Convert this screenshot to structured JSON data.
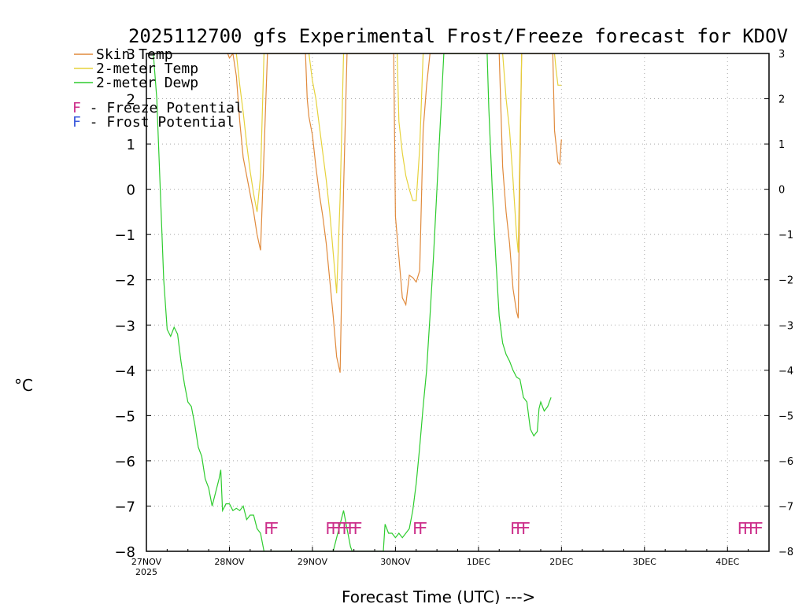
{
  "chart_data": {
    "type": "line",
    "title": "2025112700 gfs Experimental Frost/Freeze forecast for KDOV",
    "ylabel": "°C",
    "xlabel": "Forecast Time (UTC) --->",
    "ylim": [
      -8,
      3
    ],
    "yticks": [
      3,
      2,
      1,
      0,
      -1,
      -2,
      -3,
      -4,
      -5,
      -6,
      -7,
      -8
    ],
    "ytick_labels": [
      "3",
      "2",
      "1",
      "0",
      "−1",
      "−2",
      "−3",
      "−4",
      "−5",
      "−6",
      "−7",
      "−8"
    ],
    "x_unit": "hours since 27NOV2025 00 UTC",
    "xlim": [
      0,
      180
    ],
    "xticks": [
      {
        "hour": 0,
        "label": "27NOV",
        "sub": "2025"
      },
      {
        "hour": 24,
        "label": "28NOV",
        "sub": ""
      },
      {
        "hour": 48,
        "label": "29NOV",
        "sub": ""
      },
      {
        "hour": 72,
        "label": "30NOV",
        "sub": ""
      },
      {
        "hour": 96,
        "label": "1DEC",
        "sub": ""
      },
      {
        "hour": 120,
        "label": "2DEC",
        "sub": ""
      },
      {
        "hour": 144,
        "label": "3DEC",
        "sub": ""
      },
      {
        "hour": 168,
        "label": "4DEC",
        "sub": ""
      }
    ],
    "grid": true,
    "legend_position": "top-left",
    "legend": [
      {
        "label": "Skin Temp",
        "color": "#e08a3c"
      },
      {
        "label": "2-meter Temp",
        "color": "#e6d23c"
      },
      {
        "label": "2-meter Dewp",
        "color": "#2ecc2e"
      }
    ],
    "flag_legend": [
      {
        "symbol": "F",
        "text": " - Freeze Potential",
        "color": "#cc2e8a"
      },
      {
        "symbol": "F",
        "text": " - Frost Potential",
        "color": "#3c5adc"
      }
    ],
    "series": [
      {
        "name": "Skin Temp",
        "color": "#e08a3c",
        "points": [
          [
            23.5,
            3
          ],
          [
            24,
            2.9
          ],
          [
            25,
            3
          ],
          [
            26,
            2.5
          ],
          [
            27,
            1.5
          ],
          [
            28,
            0.7
          ],
          [
            29,
            0.3
          ],
          [
            30,
            -0.1
          ],
          [
            31,
            -0.5
          ],
          [
            32,
            -1.0
          ],
          [
            33,
            -1.35
          ],
          [
            34,
            0.8
          ],
          [
            35,
            3
          ],
          [
            46,
            3
          ],
          [
            46.5,
            2
          ],
          [
            47,
            1.6
          ],
          [
            48,
            1.2
          ],
          [
            49,
            0.5
          ],
          [
            50,
            -0.1
          ],
          [
            51,
            -0.6
          ],
          [
            52,
            -1.2
          ],
          [
            53,
            -2.0
          ],
          [
            54,
            -2.8
          ],
          [
            55,
            -3.7
          ],
          [
            56,
            -4.05
          ],
          [
            57,
            0
          ],
          [
            58,
            3
          ],
          [
            71.5,
            3
          ],
          [
            72,
            -0.6
          ],
          [
            73,
            -1.5
          ],
          [
            74,
            -2.4
          ],
          [
            75,
            -2.55
          ],
          [
            76,
            -1.9
          ],
          [
            77,
            -1.95
          ],
          [
            78,
            -2.05
          ],
          [
            79,
            -1.8
          ],
          [
            80,
            1.3
          ],
          [
            81,
            2.3
          ],
          [
            82,
            3
          ],
          [
            102,
            3
          ],
          [
            103,
            0.5
          ],
          [
            104,
            -0.5
          ],
          [
            105,
            -1.2
          ],
          [
            106,
            -2.2
          ],
          [
            107,
            -2.7
          ],
          [
            107.5,
            -2.85
          ],
          [
            108,
            0.5
          ],
          [
            108.5,
            3
          ],
          [
            117.5,
            3
          ],
          [
            118,
            1.3
          ],
          [
            119,
            0.6
          ],
          [
            119.5,
            0.55
          ],
          [
            120,
            1.1
          ]
        ]
      },
      {
        "name": "2-meter Temp",
        "color": "#e6d23c",
        "points": [
          [
            26,
            3
          ],
          [
            27,
            2.3
          ],
          [
            28,
            1.7
          ],
          [
            29,
            1.0
          ],
          [
            30,
            0.4
          ],
          [
            31,
            -0.1
          ],
          [
            32,
            -0.5
          ],
          [
            33,
            0.3
          ],
          [
            34,
            3
          ],
          [
            47,
            3
          ],
          [
            48,
            2.4
          ],
          [
            49,
            2.0
          ],
          [
            50,
            1.4
          ],
          [
            51,
            0.8
          ],
          [
            52,
            0.2
          ],
          [
            53,
            -0.5
          ],
          [
            54,
            -1.4
          ],
          [
            55,
            -2.3
          ],
          [
            56,
            -0.2
          ],
          [
            57,
            3
          ],
          [
            72.5,
            3
          ],
          [
            73,
            1.5
          ],
          [
            74,
            0.8
          ],
          [
            75,
            0.3
          ],
          [
            76,
            0.0
          ],
          [
            77,
            -0.25
          ],
          [
            78,
            -0.25
          ],
          [
            79,
            0.9
          ],
          [
            80,
            3
          ],
          [
            103,
            3
          ],
          [
            104,
            2.0
          ],
          [
            105,
            1.3
          ],
          [
            106,
            0.2
          ],
          [
            107,
            -1.0
          ],
          [
            107.5,
            -1.4
          ],
          [
            108,
            1.0
          ],
          [
            108.5,
            3
          ],
          [
            118,
            3
          ],
          [
            118.5,
            2.6
          ],
          [
            119,
            2.3
          ],
          [
            120,
            2.3
          ]
        ]
      },
      {
        "name": "2-meter Dewp",
        "color": "#2ecc2e",
        "points": [
          [
            2,
            3
          ],
          [
            3,
            2.0
          ],
          [
            4,
            0.0
          ],
          [
            5,
            -2.0
          ],
          [
            6,
            -3.1
          ],
          [
            7,
            -3.25
          ],
          [
            8,
            -3.05
          ],
          [
            9,
            -3.2
          ],
          [
            10,
            -3.8
          ],
          [
            11,
            -4.3
          ],
          [
            12,
            -4.7
          ],
          [
            13,
            -4.8
          ],
          [
            14,
            -5.2
          ],
          [
            15,
            -5.7
          ],
          [
            16,
            -5.9
          ],
          [
            17,
            -6.4
          ],
          [
            18,
            -6.6
          ],
          [
            19,
            -7.0
          ],
          [
            20,
            -6.7
          ],
          [
            21,
            -6.4
          ],
          [
            21.5,
            -6.2
          ],
          [
            22,
            -7.1
          ],
          [
            23,
            -6.95
          ],
          [
            24,
            -6.95
          ],
          [
            25,
            -7.1
          ],
          [
            26,
            -7.05
          ],
          [
            27,
            -7.1
          ],
          [
            28,
            -7.0
          ],
          [
            29,
            -7.3
          ],
          [
            30,
            -7.2
          ],
          [
            31,
            -7.2
          ],
          [
            32,
            -7.5
          ],
          [
            33,
            -7.6
          ],
          [
            34,
            -8.0
          ],
          [
            54,
            -8.0
          ],
          [
            55,
            -7.7
          ],
          [
            56,
            -7.4
          ],
          [
            57,
            -7.1
          ],
          [
            58,
            -7.5
          ],
          [
            59,
            -7.9
          ],
          [
            59.5,
            -8.0
          ],
          [
            68.5,
            -8.0
          ],
          [
            69,
            -7.4
          ],
          [
            70,
            -7.6
          ],
          [
            71,
            -7.6
          ],
          [
            72,
            -7.7
          ],
          [
            73,
            -7.6
          ],
          [
            74,
            -7.7
          ],
          [
            75,
            -7.6
          ],
          [
            76,
            -7.5
          ],
          [
            77,
            -7.1
          ],
          [
            78,
            -6.5
          ],
          [
            79,
            -5.7
          ],
          [
            80,
            -4.8
          ],
          [
            81,
            -4.0
          ],
          [
            82,
            -2.8
          ],
          [
            83,
            -1.5
          ],
          [
            84,
            0.0
          ],
          [
            85,
            1.5
          ],
          [
            86,
            3
          ],
          [
            98.5,
            3
          ],
          [
            99,
            1.8
          ],
          [
            100,
            0.0
          ],
          [
            101,
            -1.5
          ],
          [
            102,
            -2.8
          ],
          [
            103,
            -3.4
          ],
          [
            104,
            -3.65
          ],
          [
            105,
            -3.8
          ],
          [
            106,
            -4.0
          ],
          [
            107,
            -4.15
          ],
          [
            108,
            -4.2
          ],
          [
            109,
            -4.6
          ],
          [
            110,
            -4.7
          ],
          [
            111,
            -5.3
          ],
          [
            112,
            -5.45
          ],
          [
            113,
            -5.35
          ],
          [
            113.5,
            -4.85
          ],
          [
            114,
            -4.7
          ],
          [
            115,
            -4.9
          ],
          [
            116,
            -4.8
          ],
          [
            117,
            -4.6
          ]
        ]
      }
    ],
    "flag_groups": [
      {
        "hour": 35.5,
        "text": "FF",
        "color": "#cc2e8a"
      },
      {
        "hour": 56.5,
        "text": "FFFFFF",
        "color": "#cc2e8a"
      },
      {
        "hour": 78.5,
        "text": "FF",
        "color": "#cc2e8a"
      },
      {
        "hour": 107.5,
        "text": "FFF",
        "color": "#cc2e8a"
      },
      {
        "hour": 174,
        "text": "FFFF",
        "color": "#cc2e8a"
      }
    ]
  }
}
